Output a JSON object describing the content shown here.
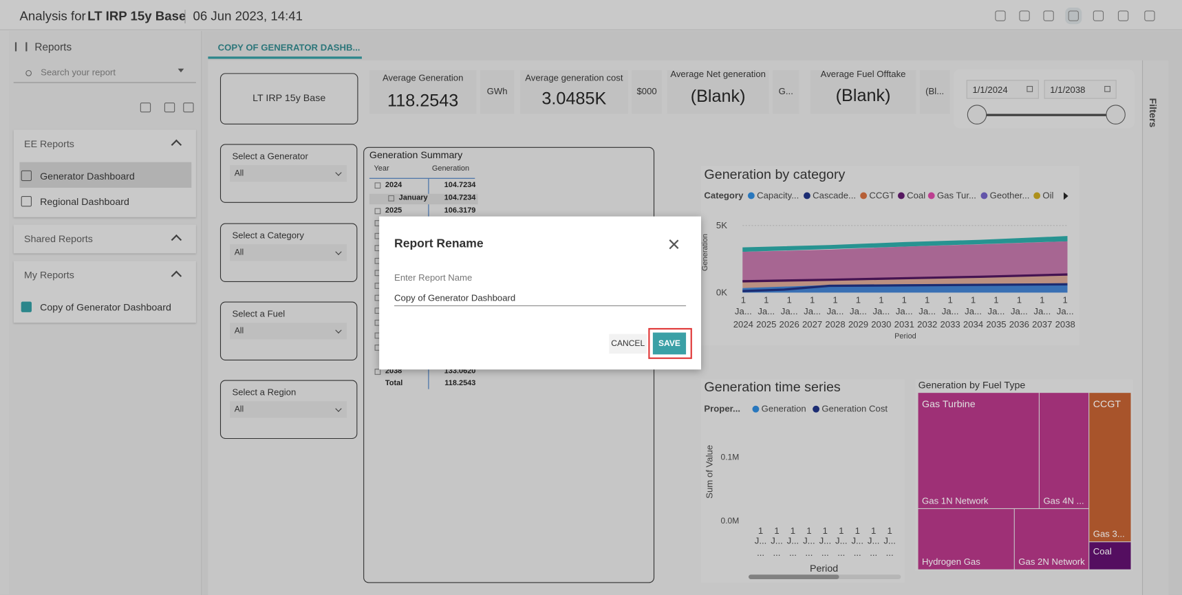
{
  "header": {
    "prefix": "Analysis for",
    "name": "LT IRP 15y Base",
    "timestamp": "06 Jun 2023, 14:41"
  },
  "sidebar": {
    "title": "Reports",
    "search_placeholder": "Search your report",
    "groups": [
      {
        "name": "EE Reports",
        "items": [
          "Generator Dashboard",
          "Regional Dashboard"
        ]
      },
      {
        "name": "Shared Reports",
        "items": []
      },
      {
        "name": "My Reports",
        "items": [
          "Copy of Generator Dashboard"
        ]
      }
    ]
  },
  "tab": "COPY OF GENERATOR DASHB...",
  "report": {
    "scenario": "LT IRP 15y Base",
    "kpis": [
      {
        "label": "Average Generation",
        "value": "118.2543",
        "unit": "GWh"
      },
      {
        "label": "Average generation cost",
        "value": "3.0485K",
        "unit": "$000"
      },
      {
        "label": "Average Net generation",
        "value": "(Blank)",
        "unit": "G..."
      },
      {
        "label": "Average Fuel Offtake",
        "value": "(Blank)",
        "unit": "(Bl..."
      }
    ],
    "date_range": [
      "1/1/2024",
      "1/1/2038"
    ],
    "slicers": [
      {
        "label": "Select a Generator",
        "value": "All"
      },
      {
        "label": "Select a Category",
        "value": "All"
      },
      {
        "label": "Select a Fuel",
        "value": "All"
      },
      {
        "label": "Select a Region",
        "value": "All"
      }
    ],
    "summary": {
      "title": "Generation Summary",
      "columns": [
        "Year",
        "Generation"
      ],
      "rows": [
        [
          "2024",
          "104.7234"
        ],
        [
          "January",
          "104.7234"
        ],
        [
          "2025",
          "106.3179"
        ],
        [
          "2038",
          "133.0620"
        ],
        [
          "Total",
          "118.2543"
        ]
      ]
    },
    "category_chart": {
      "title": "Generation by category",
      "legend_title": "Category",
      "legend": [
        "Capacity...",
        "Cascade...",
        "CCGT",
        "Coal",
        "Gas Tur...",
        "Geother...",
        "Oil"
      ],
      "y_label": "Generation",
      "yticks": [
        "5K",
        "0K"
      ],
      "x_line1": "1",
      "x_line2": "Ja...",
      "x_years": [
        "2024",
        "2025",
        "2026",
        "2027",
        "2028",
        "2029",
        "2030",
        "2031",
        "2032",
        "2033",
        "2034",
        "2035",
        "2036",
        "2037",
        "2038"
      ],
      "x_label": "Period"
    },
    "time_series": {
      "title": "Generation time series",
      "legend_title": "Proper...",
      "legend": [
        "Generation",
        "Generation Cost"
      ],
      "y_label": "Sum of Value",
      "yticks": [
        "0.1M",
        "0.0M"
      ],
      "x_line1": "1",
      "x_line2": "J...",
      "x_line3": "...",
      "x_label": "Period"
    },
    "treemap": {
      "title": "Generation by Fuel Type",
      "groups": [
        "Gas Turbine",
        "CCGT"
      ],
      "tiles": [
        "Gas 1N Network",
        "Gas 4N ...",
        "Hydrogen Gas",
        "Gas 2N Network",
        "Gas 3...",
        "Coal"
      ]
    },
    "filters": "Filters"
  },
  "dialog": {
    "title": "Report Rename",
    "field_label": "Enter Report Name",
    "field_value": "Copy of Generator Dashboard",
    "cancel": "CANCEL",
    "save": "SAVE"
  }
}
